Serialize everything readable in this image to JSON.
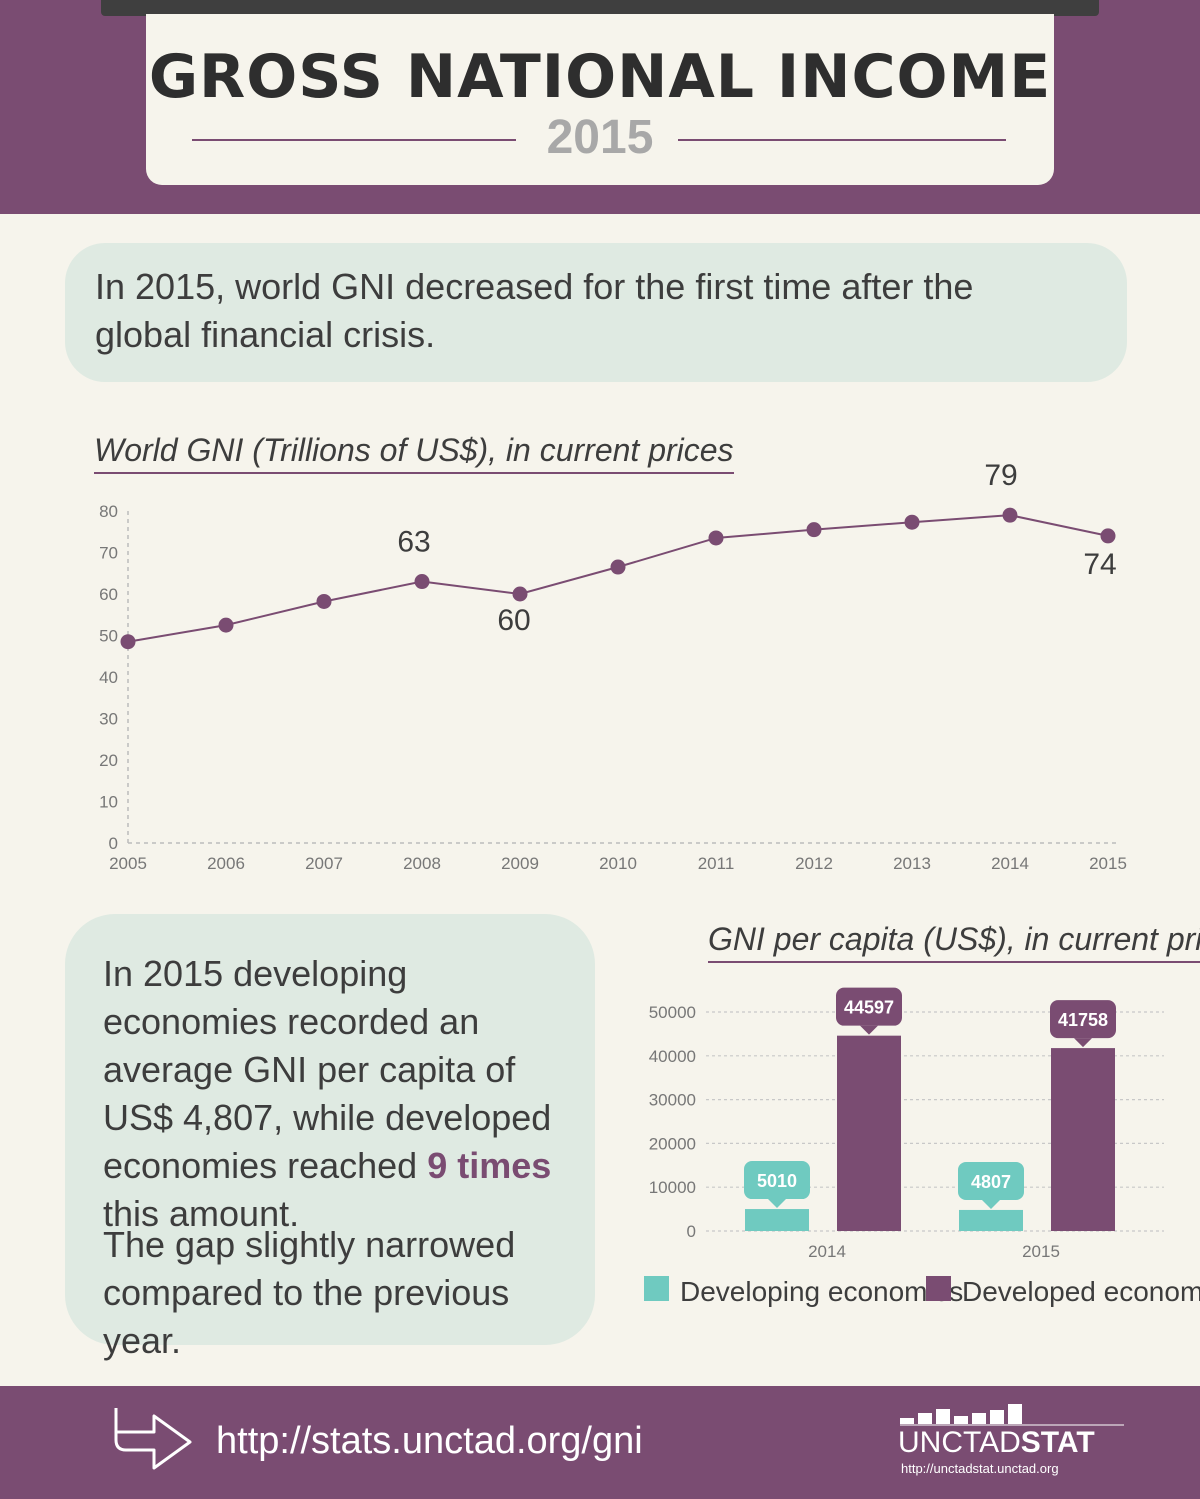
{
  "header": {
    "title": "GROSS NATIONAL INCOME",
    "year": "2015"
  },
  "intro": {
    "text": "In 2015, world GNI decreased for the first time after the global financial crisis."
  },
  "chart_data": [
    {
      "type": "line",
      "title": "World GNI (Trillions of US$), in current prices",
      "x": [
        "2005",
        "2006",
        "2007",
        "2008",
        "2009",
        "2010",
        "2011",
        "2012",
        "2013",
        "2014",
        "2015"
      ],
      "series": [
        {
          "values": [
            48.5,
            52.5,
            58.2,
            63,
            60,
            66.5,
            73.5,
            75.5,
            77.3,
            79,
            74
          ]
        }
      ],
      "data_labels": [
        {
          "x": "2008",
          "label": "63"
        },
        {
          "x": "2009",
          "label": "60"
        },
        {
          "x": "2014",
          "label": "79"
        },
        {
          "x": "2015",
          "label": "74"
        }
      ],
      "ylim": [
        0,
        80
      ],
      "yticks": [
        "0",
        "10",
        "20",
        "30",
        "40",
        "50",
        "60",
        "70",
        "80"
      ],
      "color": "#7a4c72",
      "grid": false
    },
    {
      "type": "bar",
      "title": "GNI per capita (US$), in current prices",
      "categories": [
        "2014",
        "2015"
      ],
      "series": [
        {
          "name": "Developing economies",
          "values": [
            5010,
            4807
          ],
          "color": "#6fcac0"
        },
        {
          "name": "Developed economies",
          "values": [
            44597,
            41758
          ],
          "color": "#7a4c72"
        }
      ],
      "ylim": [
        0,
        50000
      ],
      "yticks": [
        "0",
        "10000",
        "20000",
        "30000",
        "40000",
        "50000"
      ],
      "grid": true,
      "legend": "bottom"
    }
  ],
  "summary": {
    "p1_before": "In 2015 developing economies recorded an average GNI per capita of US$ 4,807, while developed economies reached ",
    "p1_highlight": "9 times",
    "p1_after": " this amount.",
    "p2": "The gap slightly narrowed compared to the previous year."
  },
  "footer": {
    "link": "http://stats.unctad.org/gni",
    "logo_unctad": "UNCTAD",
    "logo_stat": "STAT",
    "logo_url": "http://unctadstat.unctad.org",
    "arrow_icon": "arrow-right-icon"
  }
}
